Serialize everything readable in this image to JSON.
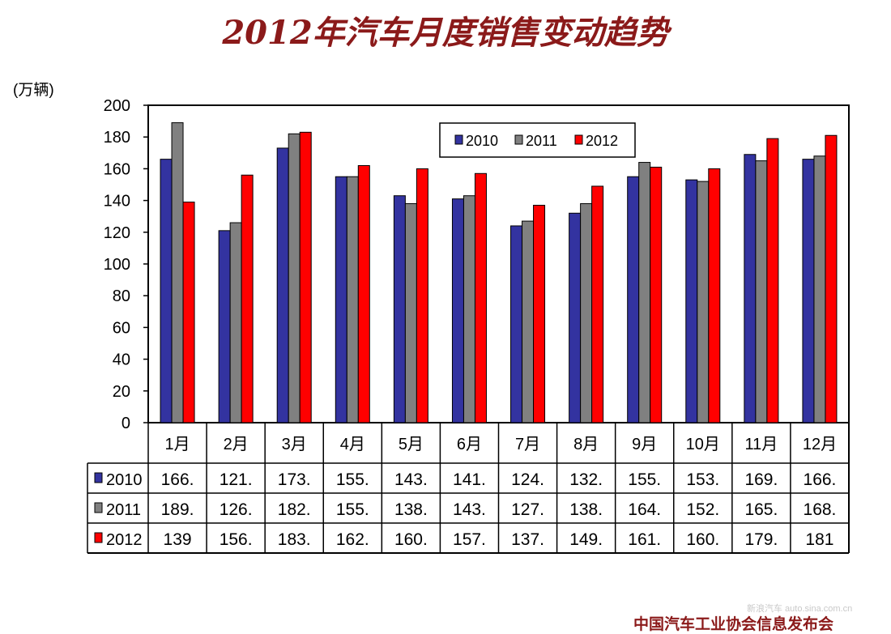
{
  "title": "2012年汽车月度销售变动趋势",
  "unit_label": "(万辆)",
  "source": "中国汽车工业协会信息发布会",
  "watermark": "新浪汽车 auto.sina.com.cn",
  "colors": {
    "2010": "#3333a0",
    "2011": "#808080",
    "2012": "#ff0000"
  },
  "chart_data": {
    "type": "bar",
    "categories": [
      "1月",
      "2月",
      "3月",
      "4月",
      "5月",
      "6月",
      "7月",
      "8月",
      "9月",
      "10月",
      "11月",
      "12月"
    ],
    "series": [
      {
        "name": "2010",
        "values": [
          166,
          121,
          173,
          155,
          143,
          141,
          124,
          132,
          155,
          153,
          169,
          166
        ]
      },
      {
        "name": "2011",
        "values": [
          189,
          126,
          182,
          155,
          138,
          143,
          127,
          138,
          164,
          152,
          165,
          168
        ]
      },
      {
        "name": "2012",
        "values": [
          139,
          156,
          183,
          162,
          160,
          157,
          137,
          149,
          161,
          160,
          179,
          181
        ]
      }
    ],
    "table_labels": {
      "2010": [
        "166.",
        "121.",
        "173.",
        "155.",
        "143.",
        "141.",
        "124.",
        "132.",
        "155.",
        "153.",
        "169.",
        "166."
      ],
      "2011": [
        "189.",
        "126.",
        "182.",
        "155.",
        "138.",
        "143.",
        "127.",
        "138.",
        "164.",
        "152.",
        "165.",
        "168."
      ],
      "2012": [
        "139",
        "156.",
        "183.",
        "162.",
        "160.",
        "157.",
        "137.",
        "149.",
        "161.",
        "160.",
        "179.",
        "181"
      ]
    },
    "ylim": [
      0,
      200
    ],
    "yticks": [
      0,
      20,
      40,
      60,
      80,
      100,
      120,
      140,
      160,
      180,
      200
    ],
    "legend": [
      "2010",
      "2011",
      "2012"
    ],
    "legend_position": "top-center",
    "grid": false
  }
}
